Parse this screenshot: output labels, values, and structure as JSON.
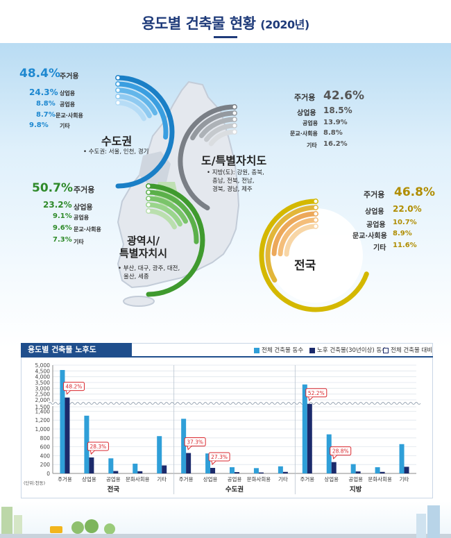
{
  "title": "용도별 건축물 현황",
  "title_year": "(2020년)",
  "regions": {
    "capital": {
      "title": "수도권",
      "note": "• 수도권: 서울, 인천, 경기",
      "color": "#1e88d0",
      "items": [
        {
          "pct": "48.4%",
          "label": "주거용"
        },
        {
          "pct": "24.3%",
          "label": "상업용"
        },
        {
          "pct": "8.8%",
          "label": "공업용"
        },
        {
          "pct": "8.7%",
          "label": "문교·사회용"
        },
        {
          "pct": "9.8%",
          "label": "기타"
        }
      ]
    },
    "province": {
      "title": "도/특별자치도",
      "note_line1": "• 지방(도): 강원, 충북,",
      "note_line2": "충남, 전북, 전남,",
      "note_line3": "경북, 경남, 제주",
      "color": "#8a8f96",
      "items": [
        {
          "label": "주거용",
          "pct": "42.6%"
        },
        {
          "label": "상업용",
          "pct": "18.5%"
        },
        {
          "label": "공업용",
          "pct": "13.9%"
        },
        {
          "label": "문교·사회용",
          "pct": "8.8%"
        },
        {
          "label": "기타",
          "pct": "16.2%"
        }
      ]
    },
    "metro": {
      "title_line1": "광역시/",
      "title_line2": "특별자치시",
      "note_line1": "• 부산, 대구, 광주, 대전,",
      "note_line2": "울산, 세종",
      "color": "#4ea53a",
      "items": [
        {
          "pct": "50.7%",
          "label": "주거용"
        },
        {
          "pct": "23.2%",
          "label": "상업용"
        },
        {
          "pct": "9.1%",
          "label": "공업용"
        },
        {
          "pct": "9.6%",
          "label": "문교·사회용"
        },
        {
          "pct": "7.3%",
          "label": "기타"
        }
      ]
    },
    "national": {
      "title": "전국",
      "color": "#c9a400",
      "items": [
        {
          "label": "주거용",
          "pct": "46.8%"
        },
        {
          "label": "상업용",
          "pct": "22.0%"
        },
        {
          "label": "공업용",
          "pct": "10.7%"
        },
        {
          "label": "문교·사회용",
          "pct": "8.9%"
        },
        {
          "label": "기타",
          "pct": "11.6%"
        }
      ]
    }
  },
  "chart_data": {
    "type": "bar",
    "title": "용도별 건축물 노후도",
    "unit_label": "(단위:천동)",
    "legend": [
      "전체 건축물 동수",
      "노후 건축물(30년이상) 동수",
      "전체 건축물 대비"
    ],
    "colors": {
      "total": "#2f9fd8",
      "old": "#1b2a6b",
      "callout": "#d9262c"
    },
    "ylim": [
      0,
      5000
    ],
    "axis_break": [
      1500,
      2000
    ],
    "yticks": [
      0,
      200,
      400,
      600,
      800,
      1000,
      1200,
      1400,
      1500,
      2000,
      2500,
      3000,
      3500,
      4000,
      4500,
      5000
    ],
    "ytick_labels": [
      "0",
      "200",
      "400",
      "600",
      "800",
      "1,000",
      "1,200",
      "1,400",
      "1,500",
      "2,000",
      "2,500",
      "3,000",
      "3,500",
      "4,000",
      "4,500",
      "5,000"
    ],
    "categories": [
      "주거용",
      "상업용",
      "공업용",
      "문화사회용",
      "기타"
    ],
    "groups": [
      {
        "name": "전국",
        "total": [
          4580,
          1300,
          340,
          220,
          840
        ],
        "old": [
          2200,
          360,
          55,
          50,
          180
        ],
        "callouts": [
          {
            "cat": 0,
            "text": "48.2%"
          },
          {
            "cat": 1,
            "text": "28.3%"
          }
        ]
      },
      {
        "name": "수도권",
        "total": [
          1230,
          450,
          140,
          120,
          160
        ],
        "old": [
          460,
          125,
          30,
          22,
          35
        ],
        "callouts": [
          {
            "cat": 0,
            "text": "37.3%"
          },
          {
            "cat": 1,
            "text": "27.3%"
          }
        ]
      },
      {
        "name": "지방",
        "total": [
          3330,
          880,
          210,
          140,
          660
        ],
        "old": [
          1710,
          255,
          45,
          35,
          150
        ],
        "callouts": [
          {
            "cat": 0,
            "text": "52.2%"
          },
          {
            "cat": 1,
            "text": "28.8%"
          }
        ]
      }
    ]
  }
}
